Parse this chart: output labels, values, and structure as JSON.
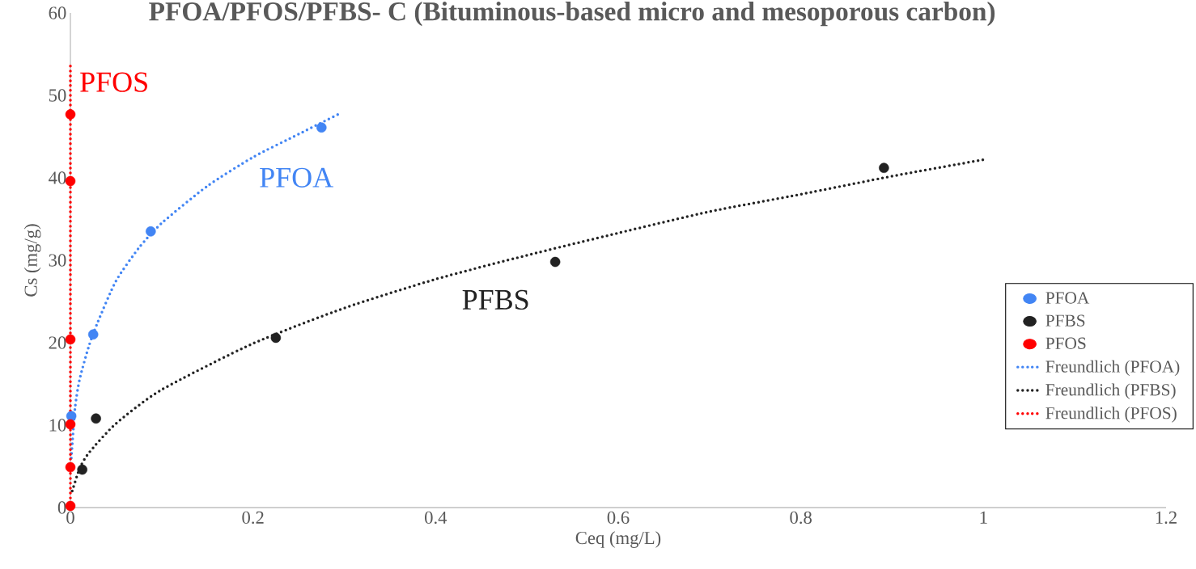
{
  "chart_data": {
    "type": "scatter",
    "title": "PFOA/PFOS/PFBS- C (Bituminous-based micro and mesoporous carbon)",
    "xlabel": "Ceq (mg/L)",
    "ylabel": "Cs (mg/g)",
    "xlim": [
      0,
      1.2
    ],
    "ylim": [
      0,
      60
    ],
    "xticks": [
      0,
      0.2,
      0.4,
      0.6,
      0.8,
      1,
      1.2
    ],
    "yticks": [
      0,
      10,
      20,
      30,
      40,
      50,
      60
    ],
    "grid": false,
    "legend": "bottom right",
    "marker": "circle",
    "series": [
      {
        "name": "PFOA",
        "color": "#4285f4",
        "x": [
          0.001,
          0.025,
          0.088,
          0.275
        ],
        "values": [
          11.1,
          21.0,
          33.5,
          46.1
        ]
      },
      {
        "name": "PFBS",
        "color": "#222222",
        "x": [
          0.013,
          0.028,
          0.225,
          0.531,
          0.891
        ],
        "values": [
          4.6,
          10.8,
          20.6,
          29.8,
          41.2
        ]
      },
      {
        "name": "PFOS",
        "color": "#ff0000",
        "x": [
          0,
          0,
          0,
          0,
          0,
          0
        ],
        "values": [
          47.7,
          39.6,
          20.4,
          10.1,
          4.9,
          0.2
        ]
      },
      {
        "name": "Freundlich (PFOA)",
        "type": "line",
        "marker": "none",
        "line_style": "dotted",
        "color": "#4285f4",
        "x": [
          0.001,
          0.005,
          0.01,
          0.02,
          0.03,
          0.05,
          0.075,
          0.1,
          0.15,
          0.2,
          0.25,
          0.295
        ],
        "values": [
          6,
          12,
          15.5,
          19.5,
          22.5,
          27.5,
          31.5,
          34.5,
          39,
          42.5,
          45.3,
          47.8
        ]
      },
      {
        "name": "Freundlich (PFBS)",
        "type": "line",
        "marker": "none",
        "line_style": "dotted",
        "color": "#222222",
        "x": [
          0.002,
          0.01,
          0.02,
          0.05,
          0.1,
          0.2,
          0.3,
          0.4,
          0.5,
          0.6,
          0.7,
          0.8,
          0.9,
          1
        ],
        "values": [
          2,
          4.7,
          6.6,
          10.2,
          14.3,
          19.9,
          24.2,
          27.7,
          30.6,
          33.3,
          35.9,
          38,
          40.2,
          42.2
        ]
      },
      {
        "name": "Freundlich (PFOS)",
        "type": "line",
        "marker": "none",
        "line_style": "dotted",
        "color": "#ff0000",
        "x": [
          0,
          0,
          0,
          0,
          0,
          0,
          0,
          0,
          0,
          0,
          0
        ],
        "values": [
          0,
          5,
          10,
          15,
          20,
          25,
          30,
          35,
          40,
          45,
          54
        ]
      }
    ],
    "annotations": [
      "PFOA",
      "PFBS",
      "PFOS"
    ]
  }
}
